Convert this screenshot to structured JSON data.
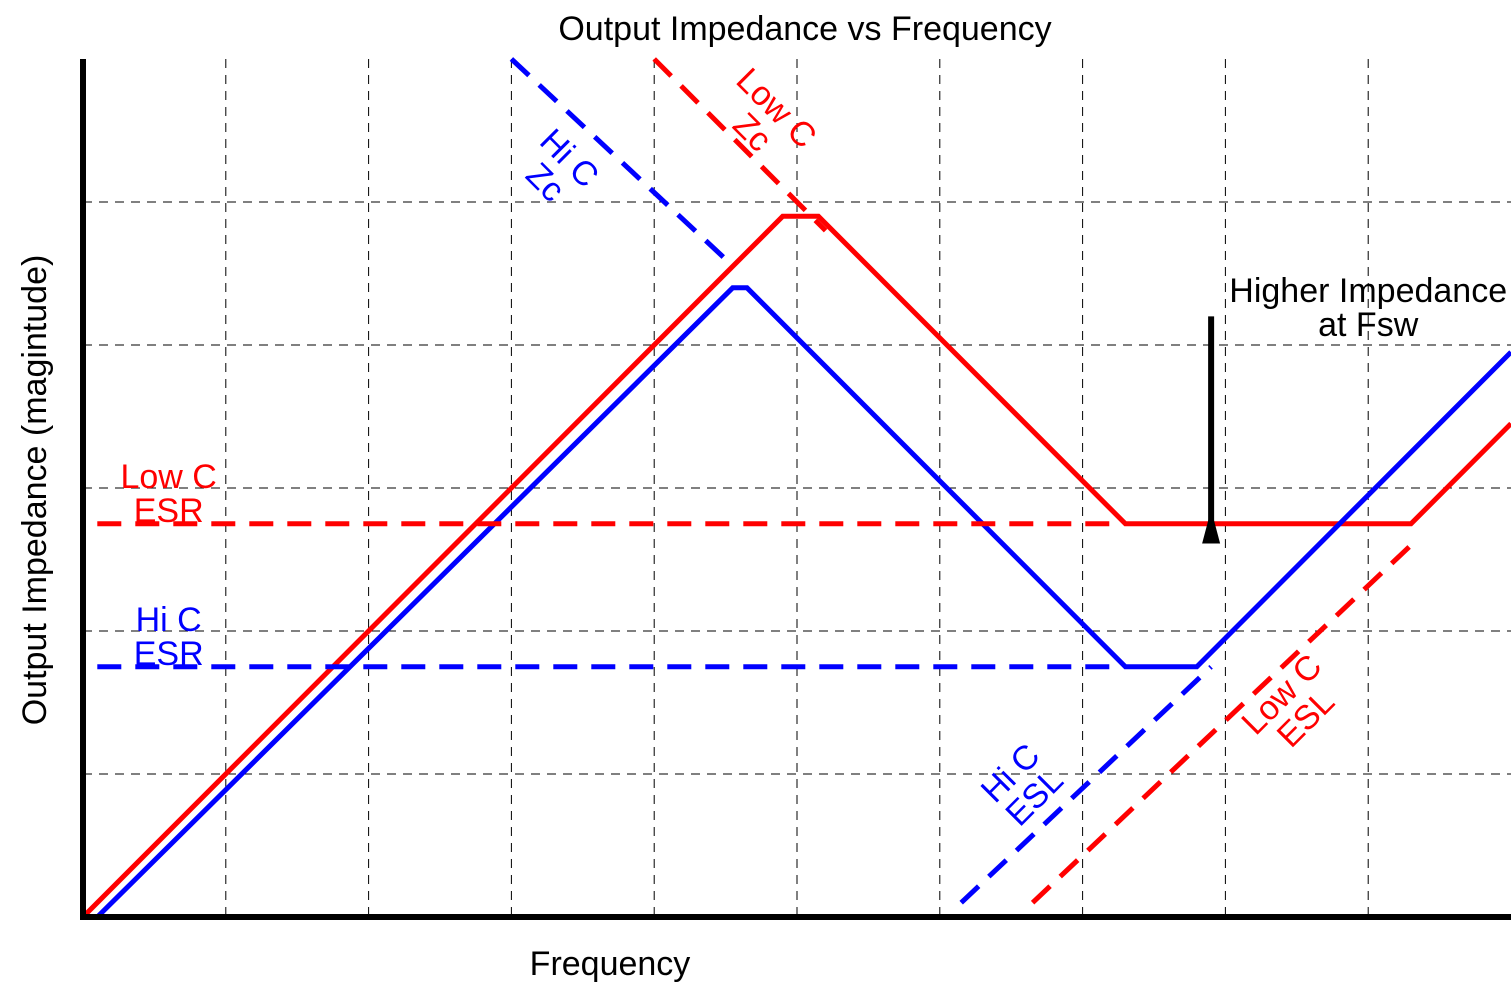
{
  "chart_data": {
    "type": "line",
    "title": "Output Impedance vs Frequency",
    "xlabel": "Frequency",
    "ylabel": "Output Impedance (magintude)",
    "xlim": [
      0,
      10
    ],
    "ylim": [
      0,
      6
    ],
    "grid": true,
    "legend": "none",
    "colors": {
      "low_c": "#ff0000",
      "hi_c": "#0000ff",
      "axis": "#000000",
      "grid": "#000000"
    },
    "series": [
      {
        "name": "",
        "color": "#ff0000",
        "style": "solid",
        "points": [
          [
            0,
            0
          ],
          [
            4.9,
            4.9
          ],
          [
            5.15,
            4.9
          ],
          [
            7.3,
            2.75
          ],
          [
            9.3,
            2.75
          ],
          [
            10,
            3.45
          ]
        ]
      },
      {
        "name": "",
        "color": "#0000ff",
        "style": "solid",
        "points": [
          [
            0.1,
            0
          ],
          [
            4.55,
            4.4
          ],
          [
            4.65,
            4.4
          ],
          [
            7.3,
            1.75
          ],
          [
            7.8,
            1.75
          ],
          [
            10,
            3.95
          ]
        ]
      },
      {
        "name": "",
        "color": "#ff0000",
        "style": "dashed",
        "points": [
          [
            0.1,
            2.75
          ],
          [
            7.25,
            2.75
          ]
        ]
      },
      {
        "name": "",
        "color": "#0000ff",
        "style": "dashed",
        "points": [
          [
            0.1,
            1.75
          ],
          [
            7.25,
            1.75
          ]
        ]
      },
      {
        "name": "",
        "color": "#ff0000",
        "style": "dashed",
        "points": [
          [
            4,
            6
          ],
          [
            5.2,
            4.8
          ]
        ]
      },
      {
        "name": "",
        "color": "#0000ff",
        "style": "dashed",
        "points": [
          [
            3,
            6
          ],
          [
            4.5,
            4.6
          ]
        ]
      },
      {
        "name": "",
        "color": "#0000ff",
        "style": "dashed",
        "points": [
          [
            6.15,
            0.1
          ],
          [
            7.9,
            1.75
          ]
        ]
      },
      {
        "name": "",
        "color": "#ff0000",
        "style": "dashed",
        "points": [
          [
            6.65,
            0.1
          ],
          [
            9.3,
            2.6
          ]
        ]
      }
    ],
    "annotations": [
      {
        "id": "low-c-esr",
        "lines": [
          "Low C",
          "ESR"
        ],
        "color": "#ff0000",
        "at": [
          0.6,
          3.0
        ],
        "rotate": 0
      },
      {
        "id": "hi-c-esr",
        "lines": [
          "Hi C",
          "ESR"
        ],
        "color": "#0000ff",
        "at": [
          0.6,
          2.0
        ],
        "rotate": 0
      },
      {
        "id": "low-c-zc",
        "lines": [
          "Low C",
          "Zc"
        ],
        "color": "#ff0000",
        "at": [
          4.8,
          5.6
        ],
        "rotate": 45
      },
      {
        "id": "hi-c-zc",
        "lines": [
          "Hi C",
          "Zc"
        ],
        "color": "#0000ff",
        "at": [
          3.35,
          5.25
        ],
        "rotate": 45
      },
      {
        "id": "hi-c-esl",
        "lines": [
          "Hi C",
          "ESL"
        ],
        "color": "#0000ff",
        "at": [
          6.55,
          0.95
        ],
        "rotate": -45
      },
      {
        "id": "low-c-esl",
        "lines": [
          "Low C",
          "ESL"
        ],
        "color": "#ff0000",
        "at": [
          8.45,
          1.5
        ],
        "rotate": -45
      },
      {
        "id": "higher-impedance",
        "lines": [
          "Higher Impedance",
          "at Fsw"
        ],
        "color": "#000000",
        "at": [
          9.0,
          4.3
        ],
        "rotate": 0
      }
    ],
    "arrow": {
      "color": "#000000",
      "from": [
        7.9,
        4.2
      ],
      "to": [
        7.9,
        2.85
      ]
    }
  }
}
